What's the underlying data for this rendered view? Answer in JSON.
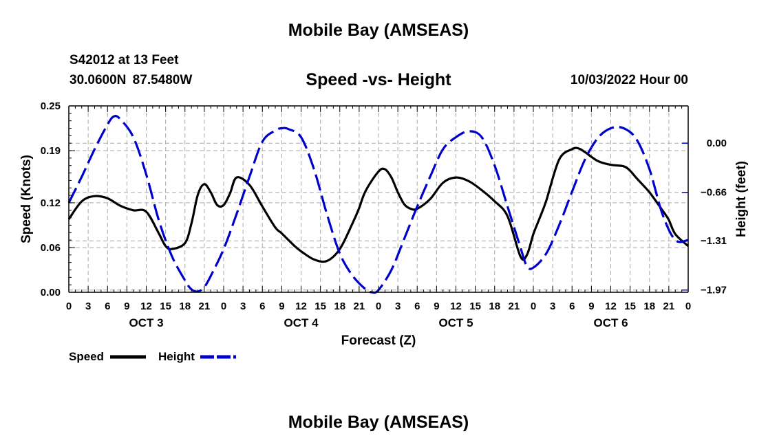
{
  "header": {
    "title": "Mobile Bay (AMSEAS)",
    "station": "S42012 at 13 Feet",
    "coords": "30.0600N  87.5480W",
    "subtitle": "Speed -vs- Height",
    "datetime": "10/03/2022 Hour 00"
  },
  "footer": {
    "title": "Mobile Bay (AMSEAS)"
  },
  "colors": {
    "speed": "#000000",
    "height": "#0000cc",
    "grid": "#aaaaaa"
  },
  "chart_data": {
    "type": "line",
    "title": "Speed -vs- Height",
    "xlabel": "Forecast (Z)",
    "ylabel": "Speed (Knots)",
    "y2label": "Height (feet)",
    "xlim": [
      0,
      96
    ],
    "ylim": [
      0,
      0.25
    ],
    "y2lim": [
      -2.0,
      0.5
    ],
    "x_ticks": [
      0,
      3,
      6,
      9,
      12,
      15,
      18,
      21,
      24,
      27,
      30,
      33,
      36,
      39,
      42,
      45,
      48,
      51,
      54,
      57,
      60,
      63,
      66,
      69,
      72,
      75,
      78,
      81,
      84,
      87,
      90,
      93,
      96
    ],
    "x_tick_labels": [
      "0",
      "3",
      "6",
      "9",
      "12",
      "15",
      "18",
      "21",
      "0",
      "3",
      "6",
      "9",
      "12",
      "15",
      "18",
      "21",
      "0",
      "3",
      "6",
      "9",
      "12",
      "15",
      "18",
      "21",
      "0",
      "3",
      "6",
      "9",
      "12",
      "15",
      "18",
      "21",
      "0"
    ],
    "y_ticks": [
      0,
      0.06,
      0.12,
      0.19,
      0.25
    ],
    "y_tick_labels": [
      "0.00",
      "0.06",
      "0.12",
      "0.19",
      "0.25"
    ],
    "y2_ticks": [
      0.0,
      -0.66,
      -1.31,
      -1.97
    ],
    "y2_tick_labels": [
      "0.00",
      "−0.66",
      "−1.31",
      "−1.97"
    ],
    "day_labels": [
      {
        "label": "OCT 3",
        "x": 12
      },
      {
        "label": "OCT 4",
        "x": 36
      },
      {
        "label": "OCT 5",
        "x": 60
      },
      {
        "label": "OCT 6",
        "x": 84
      }
    ],
    "legend": [
      {
        "name": "Speed",
        "style": "solid"
      },
      {
        "name": "Height",
        "style": "dashed"
      }
    ],
    "series": [
      {
        "name": "Speed",
        "axis": "left",
        "x": [
          0,
          2,
          4,
          6,
          8,
          10,
          12,
          14,
          15,
          16,
          18,
          19,
          20,
          21,
          22,
          23,
          24,
          25,
          26,
          28,
          30,
          32,
          33,
          35,
          36,
          38,
          40,
          42,
          44,
          45,
          46,
          48,
          49,
          50,
          51,
          52,
          53,
          54,
          56,
          58,
          60,
          62,
          64,
          66,
          68,
          70,
          71,
          72,
          73,
          74,
          76,
          78,
          79,
          80,
          82,
          84,
          86,
          87,
          88,
          90,
          92,
          93,
          94,
          96
        ],
        "y": [
          0.098,
          0.122,
          0.129,
          0.126,
          0.116,
          0.11,
          0.108,
          0.078,
          0.062,
          0.058,
          0.066,
          0.092,
          0.131,
          0.145,
          0.134,
          0.117,
          0.117,
          0.133,
          0.154,
          0.144,
          0.115,
          0.087,
          0.079,
          0.062,
          0.055,
          0.044,
          0.042,
          0.058,
          0.093,
          0.113,
          0.136,
          0.162,
          0.165,
          0.154,
          0.134,
          0.118,
          0.112,
          0.112,
          0.125,
          0.147,
          0.154,
          0.149,
          0.137,
          0.122,
          0.102,
          0.048,
          0.05,
          0.078,
          0.1,
          0.123,
          0.178,
          0.192,
          0.193,
          0.188,
          0.176,
          0.171,
          0.169,
          0.163,
          0.153,
          0.134,
          0.11,
          0.097,
          0.078,
          0.062
        ]
      },
      {
        "name": "Height",
        "axis": "right",
        "x": [
          0,
          2,
          4,
          6,
          7,
          8,
          10,
          12,
          14,
          16,
          18,
          19,
          20,
          21,
          22,
          24,
          26,
          28,
          30,
          32,
          33,
          34,
          36,
          38,
          40,
          42,
          44,
          46,
          47,
          48,
          50,
          52,
          54,
          56,
          58,
          60,
          62,
          64,
          66,
          68,
          70,
          71,
          72,
          74,
          76,
          78,
          80,
          82,
          84,
          86,
          88,
          90,
          92,
          94,
          96
        ],
        "y": [
          -0.8,
          -0.45,
          -0.08,
          0.25,
          0.36,
          0.32,
          0.08,
          -0.42,
          -1.05,
          -1.52,
          -1.84,
          -1.96,
          -1.99,
          -1.93,
          -1.78,
          -1.42,
          -0.95,
          -0.45,
          0.02,
          0.17,
          0.2,
          0.19,
          0.08,
          -0.35,
          -0.95,
          -1.48,
          -1.78,
          -1.96,
          -2.0,
          -1.97,
          -1.7,
          -1.28,
          -0.85,
          -0.45,
          -0.08,
          0.08,
          0.16,
          0.08,
          -0.3,
          -0.85,
          -1.4,
          -1.65,
          -1.67,
          -1.48,
          -1.1,
          -0.65,
          -0.22,
          0.07,
          0.2,
          0.2,
          0.05,
          -0.35,
          -0.95,
          -1.3,
          -1.3
        ]
      }
    ]
  }
}
